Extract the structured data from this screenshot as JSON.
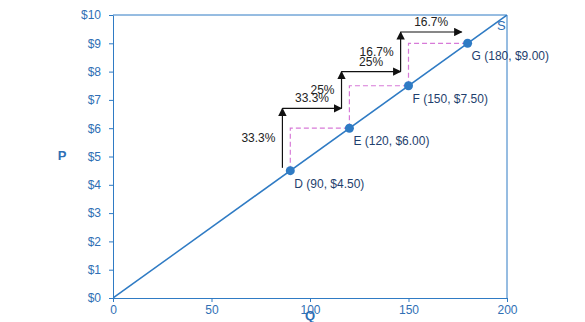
{
  "chart_data": {
    "type": "line",
    "x_label": "Q",
    "y_label": "P",
    "xlim": [
      0,
      200
    ],
    "ylim": [
      0,
      10
    ],
    "xticks": [
      0,
      50,
      100,
      150,
      200
    ],
    "yticks": [
      {
        "value": 0,
        "label": "$0"
      },
      {
        "value": 1,
        "label": "$1"
      },
      {
        "value": 2,
        "label": "$2"
      },
      {
        "value": 3,
        "label": "$3"
      },
      {
        "value": 4,
        "label": "$4"
      },
      {
        "value": 5,
        "label": "$5"
      },
      {
        "value": 6,
        "label": "$6"
      },
      {
        "value": 7,
        "label": "$7"
      },
      {
        "value": 8,
        "label": "$8"
      },
      {
        "value": 9,
        "label": "$9"
      },
      {
        "value": 10,
        "label": "$10"
      }
    ],
    "grid": false,
    "series": [
      {
        "name": "S",
        "type": "line",
        "color": "#2f7bc4",
        "x": [
          0,
          200
        ],
        "values": [
          0,
          10
        ]
      },
      {
        "type": "scatter",
        "color": "#2f7bc4",
        "marker": "circle",
        "x": [
          90,
          120,
          150,
          180
        ],
        "values": [
          4.5,
          6,
          7.5,
          9
        ],
        "value_labels": [
          "D (90, $4.50)",
          "E (120, $6.00)",
          "F (150, $7.50)",
          "G (180, $9.00)"
        ]
      }
    ],
    "annotations": [
      {
        "text": "33.3%",
        "x": [
          86,
          86
        ],
        "y": [
          4.6,
          6.7
        ]
      },
      {
        "text": "33.3%",
        "x": [
          86,
          116
        ],
        "y": [
          6.7,
          6.7
        ]
      },
      {
        "text": "25%",
        "x": [
          116,
          116
        ],
        "y": [
          6.7,
          8.0
        ]
      },
      {
        "text": "25%",
        "x": [
          116,
          146
        ],
        "y": [
          8.0,
          8.0
        ]
      },
      {
        "text": "16.7%",
        "x": [
          146,
          146
        ],
        "y": [
          8.0,
          9.4
        ]
      },
      {
        "text": "16.7%",
        "x": [
          146,
          177
        ],
        "y": [
          9.4,
          9.4
        ]
      }
    ]
  }
}
